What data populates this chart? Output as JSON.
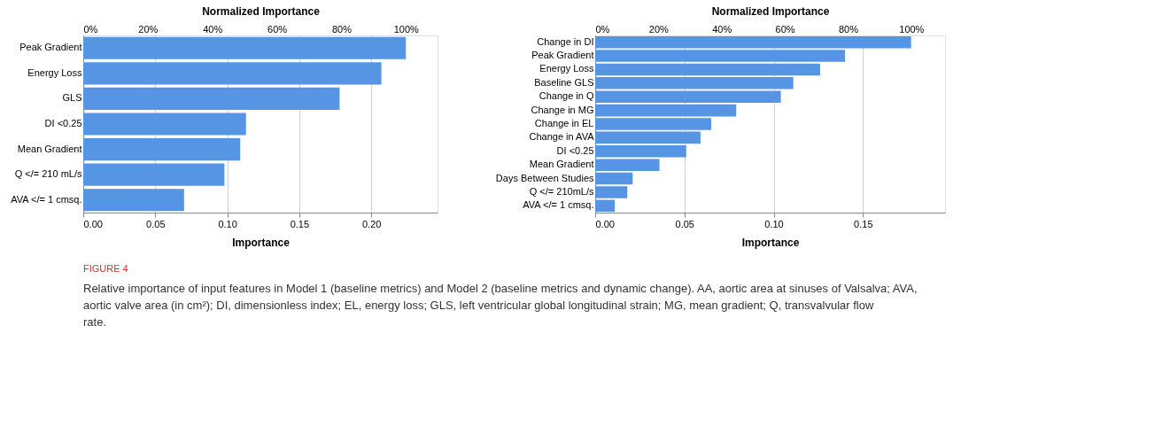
{
  "chart_data": [
    {
      "type": "bar",
      "orientation": "horizontal",
      "xlabel": "Importance",
      "x2label": "Normalized Importance",
      "categories": [
        "Peak Gradient",
        "Energy Loss",
        "GLS",
        "DI <0.25",
        "Mean Gradient",
        "Q </= 210 mL/s",
        "AVA </= 1 cmsq."
      ],
      "values": [
        0.224,
        0.207,
        0.178,
        0.113,
        0.109,
        0.098,
        0.07
      ],
      "color": "#5694e4",
      "xlim": [
        0,
        0.246
      ],
      "xticks": [
        {
          "value": 0,
          "label": "0.00"
        },
        {
          "value": 0.05,
          "label": "0.05"
        },
        {
          "value": 0.1,
          "label": "0.10"
        },
        {
          "value": 0.15,
          "label": "0.15"
        },
        {
          "value": 0.2,
          "label": "0.20"
        }
      ],
      "x2lim": [
        0,
        109.8
      ],
      "x2ticks": [
        {
          "value": 0,
          "label": "0%"
        },
        {
          "value": 20,
          "label": "20%"
        },
        {
          "value": 40,
          "label": "40%"
        },
        {
          "value": 60,
          "label": "60%"
        },
        {
          "value": 80,
          "label": "80%"
        },
        {
          "value": 100,
          "label": "100%"
        }
      ],
      "grid": "x",
      "annotations": [
        "FIGURE 4",
        "Relative importance of input features in Model 1 (baseline metrics) and Model 2 (baseline metrics and dynamic change). AA, aortic area at sinuses of Valsalva; AVA, aortic valve area (in cm²); DI, dimensionless index; EL, energy loss; GLS, left ventricular global longitudinal strain; MG, mean gradient; Q, transvalvular flow rate."
      ]
    },
    {
      "type": "bar",
      "orientation": "horizontal",
      "xlabel": "Importance",
      "x2label": "Normalized Importance",
      "categories": [
        "Change in DI",
        "Peak Gradient",
        "Energy Loss",
        "Baseline GLS",
        "Change in Q",
        "Change in MG",
        "Change in EL",
        "Change in AVA",
        "DI <0.25",
        "Mean Gradient",
        "Days Between Studies",
        "Q </= 210mL/s",
        "AVA </= 1 cmsq."
      ],
      "values": [
        0.177,
        0.14,
        0.126,
        0.111,
        0.104,
        0.079,
        0.065,
        0.059,
        0.051,
        0.036,
        0.021,
        0.018,
        0.011
      ],
      "color": "#5694e4",
      "xlim": [
        0,
        0.196
      ],
      "xticks": [
        {
          "value": 0,
          "label": "0.00"
        },
        {
          "value": 0.05,
          "label": "0.05"
        },
        {
          "value": 0.1,
          "label": "0.10"
        },
        {
          "value": 0.15,
          "label": "0.15"
        }
      ],
      "x2lim": [
        0,
        110.7
      ],
      "x2ticks": [
        {
          "value": 0,
          "label": "0%"
        },
        {
          "value": 20,
          "label": "20%"
        },
        {
          "value": 40,
          "label": "40%"
        },
        {
          "value": 60,
          "label": "60%"
        },
        {
          "value": 80,
          "label": "80%"
        },
        {
          "value": 100,
          "label": "100%"
        }
      ],
      "grid": "x"
    }
  ]
}
